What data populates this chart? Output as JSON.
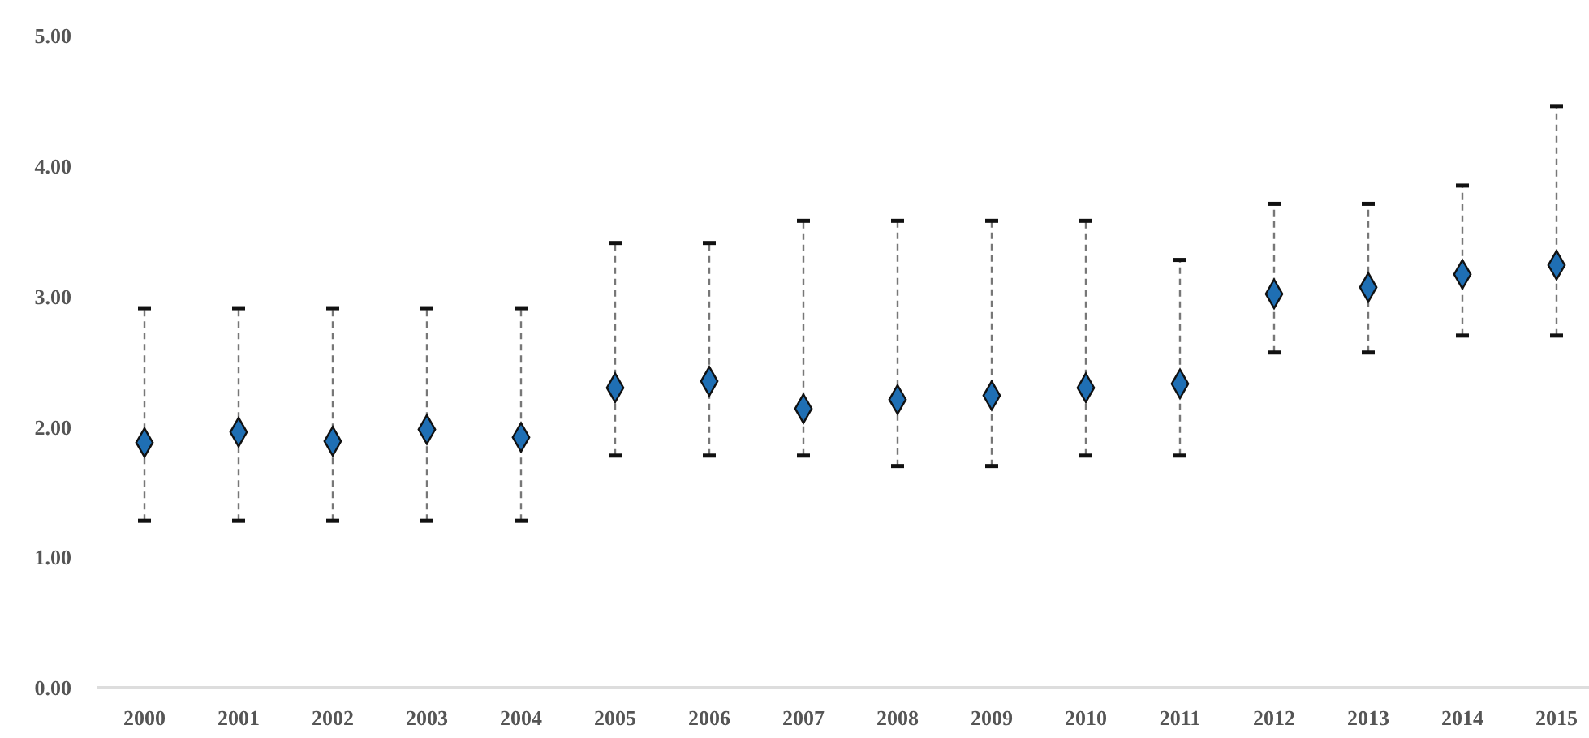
{
  "chart_data": {
    "type": "scatter",
    "categories": [
      "2000",
      "2001",
      "2002",
      "2003",
      "2004",
      "2005",
      "2006",
      "2007",
      "2008",
      "2009",
      "2010",
      "2011",
      "2012",
      "2013",
      "2014",
      "2015"
    ],
    "series": [
      {
        "color": "#1f6fb4",
        "values": [
          1.88,
          1.96,
          1.89,
          1.98,
          1.92,
          2.3,
          2.35,
          2.14,
          2.21,
          2.24,
          2.3,
          2.33,
          3.02,
          3.07,
          3.17,
          3.24
        ],
        "errors": [
          [
            1.28,
            2.91
          ],
          [
            1.28,
            2.91
          ],
          [
            1.28,
            2.91
          ],
          [
            1.28,
            2.91
          ],
          [
            1.28,
            2.91
          ],
          [
            1.78,
            3.41
          ],
          [
            1.78,
            3.41
          ],
          [
            1.78,
            3.58
          ],
          [
            1.7,
            3.58
          ],
          [
            1.7,
            3.58
          ],
          [
            1.78,
            3.58
          ],
          [
            1.78,
            3.28
          ],
          [
            2.57,
            3.71
          ],
          [
            2.57,
            3.71
          ],
          [
            2.7,
            3.85
          ],
          [
            2.7,
            4.46
          ]
        ]
      }
    ],
    "marker": "diamond",
    "ylim": [
      0,
      5
    ],
    "yticks": [
      {
        "value": 0,
        "label": "0.00"
      },
      {
        "value": 1,
        "label": "1.00"
      },
      {
        "value": 2,
        "label": "2.00"
      },
      {
        "value": 3,
        "label": "3.00"
      },
      {
        "value": 4,
        "label": "4.00"
      },
      {
        "value": 5,
        "label": "5.00"
      }
    ]
  }
}
